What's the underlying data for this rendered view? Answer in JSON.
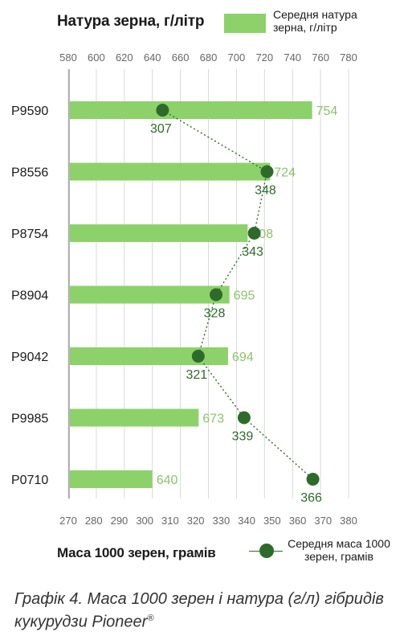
{
  "chart_data": {
    "type": "bar",
    "top_axis_title": "Натура зерна, г/літр",
    "bottom_axis_title": "Маса 1000 зерен, грамів",
    "categories": [
      "P9590",
      "P8556",
      "P8754",
      "P8904",
      "P9042",
      "P9985",
      "P0710"
    ],
    "series": [
      {
        "name": "Середня натура зерна, г/літр",
        "type": "bar",
        "axis": "top",
        "values": [
          754,
          724,
          708,
          695,
          694,
          673,
          640
        ],
        "color": "#8dd16a",
        "label_color": "#8cc26a"
      },
      {
        "name": "Середня маса 1000 зерен, грамів",
        "type": "line",
        "axis": "bottom",
        "values": [
          307,
          348,
          343,
          328,
          321,
          339,
          366
        ],
        "color": "#2e6b2a",
        "line_style": "dotted"
      }
    ],
    "top_axis": {
      "range": [
        580,
        780
      ],
      "ticks": [
        580,
        600,
        620,
        640,
        660,
        680,
        700,
        720,
        740,
        760,
        780
      ]
    },
    "bottom_axis": {
      "range": [
        270,
        380
      ],
      "ticks": [
        270,
        280,
        290,
        300,
        310,
        320,
        330,
        340,
        350,
        360,
        370,
        380
      ]
    },
    "grid": true,
    "legend_placement": [
      "top-right",
      "bottom-right"
    ]
  },
  "legend": {
    "bar_label": "Середня натура зерна, г/літр",
    "dot_label": "Середня маса 1000 зерен, грамів"
  },
  "caption": {
    "text": "Графік 4. Маса 1000 зерен і натура (г/л) гібридів кукурудзи Pioneer",
    "mark": "®"
  },
  "colors": {
    "bar": "#8dd16a",
    "dot": "#2e6b2a",
    "grid": "#d8d8d8",
    "axis_text": "#666666"
  }
}
